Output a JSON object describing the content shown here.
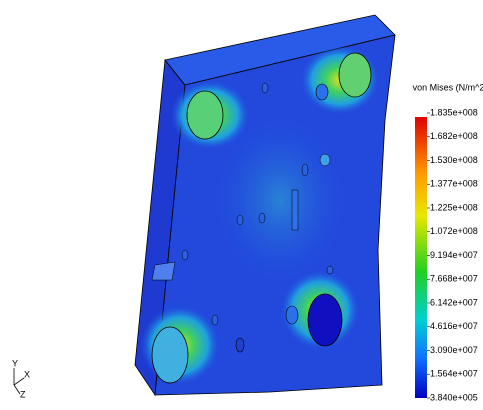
{
  "legend": {
    "title": "von Mises (N/m^2)",
    "ticks": [
      "1.835e+008",
      "1.682e+008",
      "1.530e+008",
      "1.377e+008",
      "1.225e+008",
      "1.072e+008",
      "9.194e+007",
      "7.668e+007",
      "6.142e+007",
      "4.616e+007",
      "3.090e+007",
      "1.564e+007",
      "3.840e+005"
    ]
  },
  "triad": {
    "y": "Y",
    "x": "X",
    "z": "Z"
  }
}
